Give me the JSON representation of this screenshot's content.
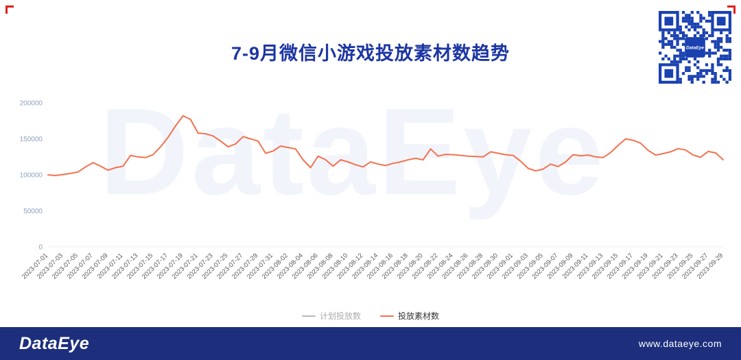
{
  "page": {
    "title": "7-9月微信小游戏投放素材数趋势",
    "watermark": "DataEye",
    "footer": {
      "logo": "DataEye",
      "url": "www.dataeye.com"
    },
    "accent_colors": {
      "title_blue": "#1c35a3",
      "footer_blue": "#1d2f7c",
      "line_orange": "#f5714d",
      "corner_red": "#e02020",
      "qr_blue": "#1a41b0"
    }
  },
  "legend": [
    {
      "label": "计划投放数",
      "color": "#b8b8b8"
    },
    {
      "label": "投放素材数",
      "color": "#f5714d"
    }
  ],
  "chart_data": {
    "type": "line",
    "title": "7-9月微信小游戏投放素材数趋势",
    "xlabel": "",
    "ylabel": "",
    "ylim": [
      0,
      200000
    ],
    "yticks": [
      0,
      50000,
      100000,
      150000,
      200000
    ],
    "grid": false,
    "legend_position": "bottom",
    "x_start": "2023-07-01",
    "x_end": "2023-09-29",
    "xtick_labels": [
      "2023-07-01",
      "2023-07-03",
      "2023-07-05",
      "2023-07-07",
      "2023-07-09",
      "2023-07-11",
      "2023-07-13",
      "2023-07-15",
      "2023-07-17",
      "2023-07-19",
      "2023-07-21",
      "2023-07-23",
      "2023-07-25",
      "2023-07-27",
      "2023-07-29",
      "2023-07-31",
      "2023-08-02",
      "2023-08-04",
      "2023-08-06",
      "2023-08-08",
      "2023-08-10",
      "2023-08-12",
      "2023-08-14",
      "2023-08-16",
      "2023-08-18",
      "2023-08-20",
      "2023-08-22",
      "2023-08-24",
      "2023-08-26",
      "2023-08-28",
      "2023-08-30",
      "2023-09-01",
      "2023-09-03",
      "2023-09-05",
      "2023-09-07",
      "2023-09-09",
      "2023-09-11",
      "2023-09-13",
      "2023-09-15",
      "2023-09-17",
      "2023-09-19",
      "2023-09-21",
      "2023-09-23",
      "2023-09-25",
      "2023-09-27",
      "2023-09-29"
    ],
    "series": [
      {
        "name": "投放素材数",
        "color": "#f5714d",
        "values": [
          100000,
          99000,
          100500,
          102000,
          104000,
          111000,
          117000,
          112000,
          106500,
          110000,
          112000,
          127000,
          125000,
          124000,
          128000,
          139000,
          152000,
          168000,
          182000,
          177000,
          158000,
          157000,
          154000,
          147000,
          139000,
          143000,
          153000,
          150000,
          147000,
          130000,
          133000,
          140000,
          138000,
          136000,
          121000,
          110000,
          126000,
          121000,
          112000,
          121000,
          118000,
          114000,
          111000,
          118000,
          115000,
          113000,
          116000,
          118000,
          121000,
          123000,
          121000,
          136000,
          126000,
          128500,
          128000,
          127000,
          126000,
          125500,
          125000,
          132000,
          130000,
          128000,
          127000,
          119000,
          109000,
          105500,
          108000,
          115000,
          111500,
          118000,
          128000,
          126500,
          127500,
          125000,
          124000,
          131000,
          141000,
          150000,
          148000,
          144000,
          134000,
          127500,
          129500,
          132000,
          136500,
          134500,
          127500,
          124500,
          132500,
          130500,
          121000
        ]
      },
      {
        "name": "计划投放数",
        "color": "#b8b8b8",
        "values": []
      }
    ]
  }
}
